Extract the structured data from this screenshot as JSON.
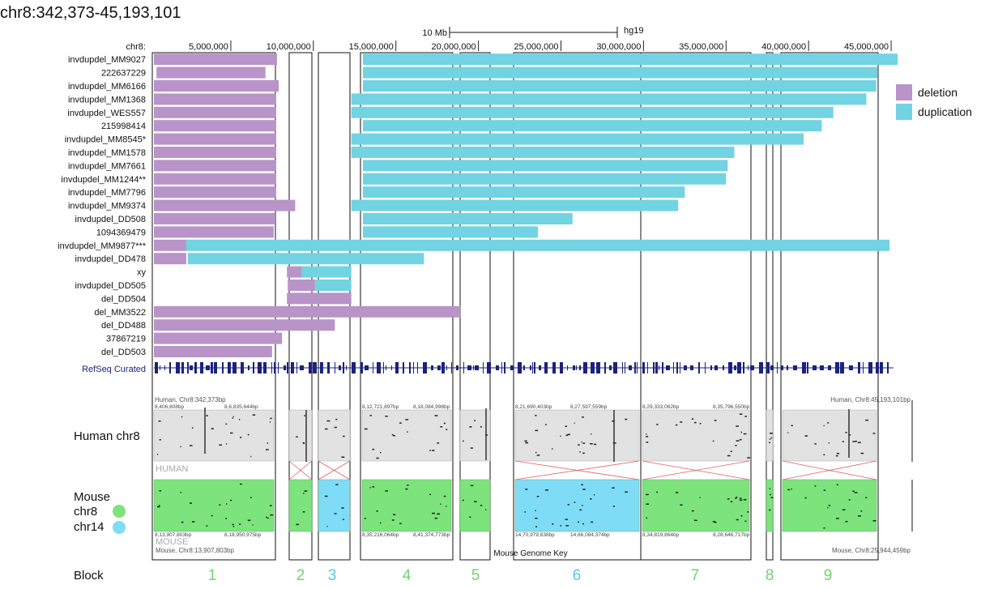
{
  "title": "chr8:342,373-45,193,101",
  "scale_bar": {
    "label": "10 Mb",
    "assembly": "hg19"
  },
  "axis": {
    "chrom_label": "chr8:",
    "range_bp": [
      342373,
      45193101
    ],
    "ticks": [
      {
        "bp": 5000000,
        "label": "5,000,000"
      },
      {
        "bp": 10000000,
        "label": "10,000,000"
      },
      {
        "bp": 15000000,
        "label": "15,000,000"
      },
      {
        "bp": 20000000,
        "label": "20,000,000"
      },
      {
        "bp": 25000000,
        "label": "25,000,000"
      },
      {
        "bp": 30000000,
        "label": "30,000,000"
      },
      {
        "bp": 35000000,
        "label": "35,000,000"
      },
      {
        "bp": 40000000,
        "label": "40,000,000"
      },
      {
        "bp": 45000000,
        "label": "45,000,000"
      }
    ]
  },
  "legend": [
    {
      "key": "deletion",
      "label": "deletion",
      "color": "#b894c8"
    },
    {
      "key": "duplication",
      "label": "duplication",
      "color": "#72d3e2"
    }
  ],
  "tracks": [
    {
      "name": "invdupdel_MM9027",
      "segments": [
        {
          "type": "deletion",
          "start": 342373,
          "end": 7800000
        },
        {
          "type": "duplication",
          "start": 13000000,
          "end": 45400000
        }
      ]
    },
    {
      "name": "222637229",
      "segments": [
        {
          "type": "deletion",
          "start": 500000,
          "end": 7100000
        },
        {
          "type": "duplication",
          "start": 13000000,
          "end": 44200000
        }
      ]
    },
    {
      "name": "invdupdel_MM6166",
      "segments": [
        {
          "type": "deletion",
          "start": 342373,
          "end": 7900000
        },
        {
          "type": "duplication",
          "start": 13000000,
          "end": 44100000
        }
      ]
    },
    {
      "name": "invdupdel_MM1368",
      "segments": [
        {
          "type": "deletion",
          "start": 342373,
          "end": 7750000
        },
        {
          "type": "duplication",
          "start": 12300000,
          "end": 43500000
        }
      ]
    },
    {
      "name": "invdupdel_WES557",
      "segments": [
        {
          "type": "deletion",
          "start": 342373,
          "end": 7750000
        },
        {
          "type": "duplication",
          "start": 12300000,
          "end": 41500000
        }
      ]
    },
    {
      "name": "215998414",
      "segments": [
        {
          "type": "deletion",
          "start": 342373,
          "end": 7750000
        },
        {
          "type": "duplication",
          "start": 13000000,
          "end": 40800000
        }
      ]
    },
    {
      "name": "invdupdel_MM8545*",
      "segments": [
        {
          "type": "deletion",
          "start": 342373,
          "end": 7750000
        },
        {
          "type": "duplication",
          "start": 12300000,
          "end": 39700000
        }
      ]
    },
    {
      "name": "invdupdel_MM1578",
      "segments": [
        {
          "type": "deletion",
          "start": 342373,
          "end": 7750000
        },
        {
          "type": "duplication",
          "start": 12300000,
          "end": 35500000
        }
      ]
    },
    {
      "name": "invdupdel_MM7661",
      "segments": [
        {
          "type": "deletion",
          "start": 342373,
          "end": 7750000
        },
        {
          "type": "duplication",
          "start": 13000000,
          "end": 35100000
        }
      ]
    },
    {
      "name": "invdupdel_MM1244**",
      "segments": [
        {
          "type": "deletion",
          "start": 342373,
          "end": 7750000
        },
        {
          "type": "duplication",
          "start": 13000000,
          "end": 35000000
        }
      ]
    },
    {
      "name": "invdupdel_MM7796",
      "segments": [
        {
          "type": "deletion",
          "start": 342373,
          "end": 7750000
        },
        {
          "type": "duplication",
          "start": 13000000,
          "end": 32500000
        }
      ]
    },
    {
      "name": "invdupdel_MM9374",
      "segments": [
        {
          "type": "deletion",
          "start": 342373,
          "end": 8900000
        },
        {
          "type": "duplication",
          "start": 12300000,
          "end": 32100000
        }
      ]
    },
    {
      "name": "invdupdel_DD508",
      "segments": [
        {
          "type": "deletion",
          "start": 342373,
          "end": 7700000
        },
        {
          "type": "duplication",
          "start": 13000000,
          "end": 25700000
        }
      ]
    },
    {
      "name": "1094369479",
      "segments": [
        {
          "type": "deletion",
          "start": 342373,
          "end": 7600000
        },
        {
          "type": "duplication",
          "start": 13000000,
          "end": 23600000
        }
      ]
    },
    {
      "name": "invdupdel_MM9877***",
      "segments": [
        {
          "type": "deletion",
          "start": 342373,
          "end": 2300000
        },
        {
          "type": "duplication",
          "start": 2300000,
          "end": 44900000
        }
      ]
    },
    {
      "name": "invdupdel_DD478",
      "segments": [
        {
          "type": "deletion",
          "start": 342373,
          "end": 2300000
        },
        {
          "type": "duplication",
          "start": 2400000,
          "end": 16700000
        }
      ]
    },
    {
      "name": "xy",
      "segments": [
        {
          "type": "deletion",
          "start": 8400000,
          "end": 9300000
        },
        {
          "type": "duplication",
          "start": 9300000,
          "end": 12300000
        }
      ]
    },
    {
      "name": "invdupdel_DD505",
      "segments": [
        {
          "type": "deletion",
          "start": 8450000,
          "end": 10100000
        },
        {
          "type": "duplication",
          "start": 10100000,
          "end": 12300000
        }
      ]
    },
    {
      "name": "del_DD504",
      "segments": [
        {
          "type": "deletion",
          "start": 8400000,
          "end": 12300000
        }
      ]
    },
    {
      "name": "del_MM3522",
      "segments": [
        {
          "type": "deletion",
          "start": 342373,
          "end": 18900000
        }
      ]
    },
    {
      "name": "del_DD488",
      "segments": [
        {
          "type": "deletion",
          "start": 342373,
          "end": 11300000
        }
      ]
    },
    {
      "name": "37867219",
      "segments": [
        {
          "type": "deletion",
          "start": 342373,
          "end": 8100000
        }
      ]
    },
    {
      "name": "del_DD503",
      "segments": [
        {
          "type": "deletion",
          "start": 342373,
          "end": 7500000
        }
      ]
    }
  ],
  "refseq": {
    "label": "RefSeq Curated",
    "color": "#1a237e"
  },
  "synteny": {
    "human_label": "Human chr8",
    "human_tag": "HUMAN",
    "human_left_label": "Human, Chr8:342,373bp",
    "human_right_label": "Human, Chr8:45,193,101bp",
    "mouse_title": "Mouse",
    "mouse_chr8": "chr8",
    "mouse_chr14": "chr14",
    "mouse_tag": "MOUSE",
    "mouse_left_label": "Mouse, Chr8:13,907,803bp",
    "mouse_right_label": "Mouse, Chr8:25,944,459bp",
    "genome_key": "Mouse Genome Key",
    "chr8_color": "#7de37d",
    "chr14_color": "#7fdcf6",
    "human_coords": [
      {
        "block": "1",
        "left": "8,406,808bp",
        "right": "8,6,835,644bp"
      },
      {
        "block": "4",
        "left": "8,12,721,897bp",
        "right": "8,18,084,998bp"
      },
      {
        "block": "6",
        "left": "8,21,690,403bp",
        "right": "8,27,597,559bp"
      },
      {
        "block": "7",
        "left": "8,29,333,062bp",
        "right": "8,35,796,550bp"
      }
    ],
    "mouse_coords": [
      {
        "block": "1",
        "left": "8,13,907,803bp",
        "right": "8,18,950,975bp"
      },
      {
        "block": "4",
        "left": "8,35,216,064bp",
        "right": "8,41,374,773bp"
      },
      {
        "block": "6",
        "left": "14,70,979,838bp",
        "right": "14,66,084,374bp"
      },
      {
        "block": "7",
        "left": "8,34,819,864bp",
        "right": "8,28,646,717bp"
      }
    ]
  },
  "block_label": "Block",
  "blocks": [
    {
      "id": "1",
      "chrom": "chr8",
      "inverted": false
    },
    {
      "id": "2",
      "chrom": "chr8",
      "inverted": true
    },
    {
      "id": "3",
      "chrom": "chr14",
      "inverted": true
    },
    {
      "id": "4",
      "chrom": "chr8",
      "inverted": false
    },
    {
      "id": "5",
      "chrom": "chr8",
      "inverted": false
    },
    {
      "id": "6",
      "chrom": "chr14",
      "inverted": true
    },
    {
      "id": "7",
      "chrom": "chr8",
      "inverted": true
    },
    {
      "id": "8",
      "chrom": "chr8",
      "inverted": false
    },
    {
      "id": "9",
      "chrom": "chr8",
      "inverted": true
    }
  ]
}
